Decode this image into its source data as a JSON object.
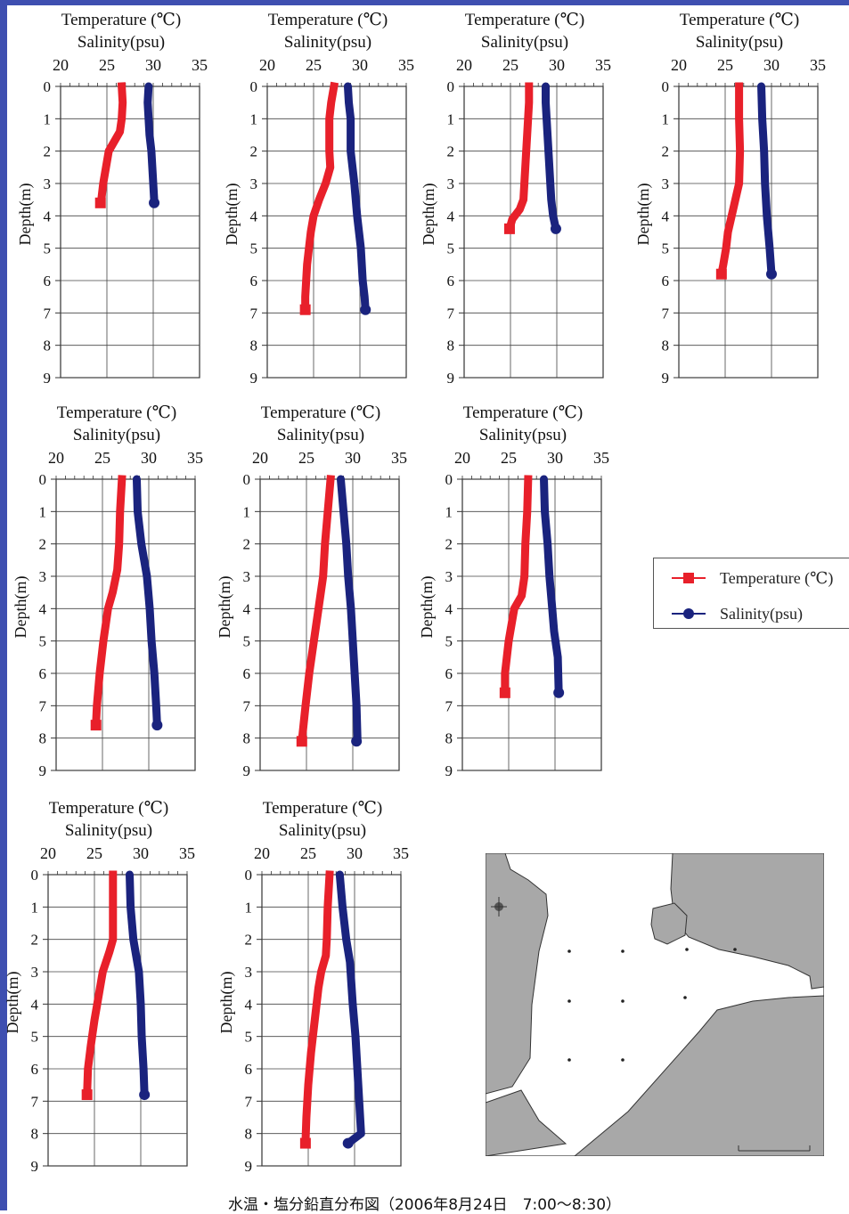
{
  "slide": {
    "background": "#ffffff",
    "frame_color": "#3e4fb0",
    "caption": "水温・塩分鉛直分布図（2006年8月24日　7:00～8:30）"
  },
  "legend": {
    "items": [
      {
        "label": "Temperature (℃)",
        "color": "#e8202a",
        "marker": "square"
      },
      {
        "label": "Salinity(psu)",
        "color": "#1a237e",
        "marker": "circle"
      }
    ]
  },
  "chart_data": [
    {
      "type": "line",
      "title_lines": [
        "Temperature (℃)",
        "Salinity(psu)"
      ],
      "ylabel": "Depth(m)",
      "xticks": [
        "20",
        "25",
        "30",
        "35"
      ],
      "xlim": [
        20,
        35
      ],
      "yticks": [
        "0",
        "1",
        "2",
        "3",
        "4",
        "5",
        "6",
        "7",
        "8",
        "9"
      ],
      "ylim": [
        0,
        9
      ],
      "y_inverted": true,
      "grid": true,
      "series": [
        {
          "name": "Temperature (℃)",
          "color": "#e8202a",
          "points": [
            [
              26.6,
              0
            ],
            [
              26.7,
              0.5
            ],
            [
              26.6,
              1
            ],
            [
              26.4,
              1.4
            ],
            [
              25.6,
              1.8
            ],
            [
              25.2,
              2
            ],
            [
              24.9,
              2.5
            ],
            [
              24.6,
              3
            ],
            [
              24.4,
              3.5
            ],
            [
              24.3,
              3.6
            ]
          ]
        },
        {
          "name": "Salinity(psu)",
          "color": "#1a237e",
          "points": [
            [
              29.5,
              0
            ],
            [
              29.4,
              0.5
            ],
            [
              29.5,
              1
            ],
            [
              29.6,
              1.5
            ],
            [
              29.8,
              2
            ],
            [
              29.9,
              2.5
            ],
            [
              30.0,
              3
            ],
            [
              30.1,
              3.5
            ],
            [
              30.1,
              3.6
            ]
          ]
        }
      ]
    },
    {
      "type": "line",
      "title_lines": [
        "Temperature (℃)",
        "Salinity(psu)"
      ],
      "ylabel": "Depth(m)",
      "xticks": [
        "20",
        "25",
        "30",
        "35"
      ],
      "xlim": [
        20,
        35
      ],
      "yticks": [
        "0",
        "1",
        "2",
        "3",
        "4",
        "5",
        "6",
        "7",
        "8",
        "9"
      ],
      "ylim": [
        0,
        9
      ],
      "y_inverted": true,
      "grid": true,
      "series": [
        {
          "name": "Temperature (℃)",
          "color": "#e8202a",
          "points": [
            [
              27.2,
              0
            ],
            [
              26.9,
              0.5
            ],
            [
              26.7,
              1
            ],
            [
              26.7,
              2
            ],
            [
              26.8,
              2.5
            ],
            [
              26.3,
              3
            ],
            [
              25.6,
              3.5
            ],
            [
              25.0,
              4
            ],
            [
              24.7,
              4.5
            ],
            [
              24.5,
              5
            ],
            [
              24.3,
              5.5
            ],
            [
              24.2,
              6
            ],
            [
              24.1,
              6.5
            ],
            [
              24.1,
              6.9
            ]
          ]
        },
        {
          "name": "Salinity(psu)",
          "color": "#1a237e",
          "points": [
            [
              28.7,
              0
            ],
            [
              28.8,
              0.5
            ],
            [
              29.0,
              1
            ],
            [
              29.0,
              2
            ],
            [
              29.4,
              3
            ],
            [
              29.7,
              4
            ],
            [
              30.1,
              5
            ],
            [
              30.3,
              6
            ],
            [
              30.5,
              6.5
            ],
            [
              30.6,
              6.9
            ]
          ]
        }
      ]
    },
    {
      "type": "line",
      "title_lines": [
        "Temperature (℃)",
        "Salinity(psu)"
      ],
      "ylabel": "Depth(m)",
      "xticks": [
        "20",
        "25",
        "30",
        "35"
      ],
      "xlim": [
        20,
        35
      ],
      "yticks": [
        "0",
        "1",
        "2",
        "3",
        "4",
        "5",
        "6",
        "7",
        "8",
        "9"
      ],
      "ylim": [
        0,
        9
      ],
      "y_inverted": true,
      "grid": true,
      "series": [
        {
          "name": "Temperature (℃)",
          "color": "#e8202a",
          "points": [
            [
              27.0,
              0
            ],
            [
              27.0,
              0.5
            ],
            [
              26.9,
              1
            ],
            [
              26.8,
              1.5
            ],
            [
              26.7,
              2
            ],
            [
              26.6,
              2.5
            ],
            [
              26.5,
              3
            ],
            [
              26.4,
              3.5
            ],
            [
              26.0,
              3.8
            ],
            [
              25.2,
              4.1
            ],
            [
              24.9,
              4.4
            ]
          ]
        },
        {
          "name": "Salinity(psu)",
          "color": "#1a237e",
          "points": [
            [
              28.8,
              0
            ],
            [
              28.8,
              0.5
            ],
            [
              28.9,
              1
            ],
            [
              29.0,
              1.5
            ],
            [
              29.1,
              2
            ],
            [
              29.2,
              2.5
            ],
            [
              29.3,
              3
            ],
            [
              29.4,
              3.5
            ],
            [
              29.6,
              4
            ],
            [
              29.9,
              4.4
            ]
          ]
        }
      ]
    },
    {
      "type": "line",
      "title_lines": [
        "Temperature (℃)",
        "Salinity(psu)"
      ],
      "ylabel": "Depth(m)",
      "xticks": [
        "20",
        "25",
        "30",
        "35"
      ],
      "xlim": [
        20,
        35
      ],
      "yticks": [
        "0",
        "1",
        "2",
        "3",
        "4",
        "5",
        "6",
        "7",
        "8",
        "9"
      ],
      "ylim": [
        0,
        9
      ],
      "y_inverted": true,
      "grid": true,
      "series": [
        {
          "name": "Temperature (℃)",
          "color": "#e8202a",
          "points": [
            [
              26.5,
              0
            ],
            [
              26.5,
              1
            ],
            [
              26.6,
              2
            ],
            [
              26.5,
              3
            ],
            [
              26.1,
              3.5
            ],
            [
              25.7,
              4
            ],
            [
              25.3,
              4.5
            ],
            [
              25.1,
              5
            ],
            [
              24.8,
              5.5
            ],
            [
              24.6,
              5.8
            ]
          ]
        },
        {
          "name": "Salinity(psu)",
          "color": "#1a237e",
          "points": [
            [
              28.9,
              0
            ],
            [
              29.0,
              1
            ],
            [
              29.2,
              2
            ],
            [
              29.3,
              3
            ],
            [
              29.5,
              4
            ],
            [
              29.8,
              5
            ],
            [
              30.0,
              5.8
            ]
          ]
        }
      ]
    },
    {
      "type": "line",
      "title_lines": [
        "Temperature (℃)",
        "Salinity(psu)"
      ],
      "ylabel": "Depth(m)",
      "xticks": [
        "20",
        "25",
        "30",
        "35"
      ],
      "xlim": [
        20,
        35
      ],
      "yticks": [
        "0",
        "1",
        "2",
        "3",
        "4",
        "5",
        "6",
        "7",
        "8",
        "9"
      ],
      "ylim": [
        0,
        9
      ],
      "y_inverted": true,
      "grid": true,
      "series": [
        {
          "name": "Temperature (℃)",
          "color": "#e8202a",
          "points": [
            [
              27.1,
              0
            ],
            [
              26.9,
              1
            ],
            [
              26.8,
              2
            ],
            [
              26.6,
              2.8
            ],
            [
              26.1,
              3.5
            ],
            [
              25.6,
              4
            ],
            [
              25.1,
              5
            ],
            [
              24.7,
              6
            ],
            [
              24.4,
              7
            ],
            [
              24.3,
              7.6
            ]
          ]
        },
        {
          "name": "Salinity(psu)",
          "color": "#1a237e",
          "points": [
            [
              28.7,
              0
            ],
            [
              28.8,
              1
            ],
            [
              29.2,
              2
            ],
            [
              29.8,
              3
            ],
            [
              30.1,
              4
            ],
            [
              30.3,
              5
            ],
            [
              30.6,
              6
            ],
            [
              30.8,
              7
            ],
            [
              30.9,
              7.6
            ]
          ]
        }
      ]
    },
    {
      "type": "line",
      "title_lines": [
        "Temperature (℃)",
        "Salinity(psu)"
      ],
      "ylabel": "Depth(m)",
      "xticks": [
        "20",
        "25",
        "30",
        "35"
      ],
      "xlim": [
        20,
        35
      ],
      "yticks": [
        "0",
        "1",
        "2",
        "3",
        "4",
        "5",
        "6",
        "7",
        "8",
        "9"
      ],
      "ylim": [
        0,
        9
      ],
      "y_inverted": true,
      "grid": true,
      "series": [
        {
          "name": "Temperature (℃)",
          "color": "#e8202a",
          "points": [
            [
              27.6,
              0
            ],
            [
              27.3,
              1
            ],
            [
              27.0,
              2
            ],
            [
              26.8,
              3
            ],
            [
              26.3,
              4
            ],
            [
              25.8,
              5
            ],
            [
              25.3,
              6
            ],
            [
              24.9,
              7
            ],
            [
              24.5,
              8.1
            ]
          ]
        },
        {
          "name": "Salinity(psu)",
          "color": "#1a237e",
          "points": [
            [
              28.7,
              0
            ],
            [
              29.0,
              1
            ],
            [
              29.3,
              2
            ],
            [
              29.5,
              3
            ],
            [
              29.8,
              4
            ],
            [
              30.0,
              5
            ],
            [
              30.2,
              6
            ],
            [
              30.4,
              7
            ],
            [
              30.5,
              8
            ],
            [
              30.4,
              8.1
            ]
          ]
        }
      ]
    },
    {
      "type": "line",
      "title_lines": [
        "Temperature (℃)",
        "Salinity(psu)"
      ],
      "ylabel": "Depth(m)",
      "xticks": [
        "20",
        "25",
        "30",
        "35"
      ],
      "xlim": [
        20,
        35
      ],
      "yticks": [
        "0",
        "1",
        "2",
        "3",
        "4",
        "5",
        "6",
        "7",
        "8",
        "9"
      ],
      "ylim": [
        0,
        9
      ],
      "y_inverted": true,
      "grid": true,
      "series": [
        {
          "name": "Temperature (℃)",
          "color": "#e8202a",
          "points": [
            [
              27.1,
              0
            ],
            [
              27.0,
              1
            ],
            [
              26.8,
              2
            ],
            [
              26.7,
              3
            ],
            [
              26.4,
              3.6
            ],
            [
              25.6,
              4
            ],
            [
              25.3,
              4.5
            ],
            [
              25.0,
              5
            ],
            [
              24.8,
              5.5
            ],
            [
              24.6,
              6
            ],
            [
              24.6,
              6.6
            ]
          ]
        },
        {
          "name": "Salinity(psu)",
          "color": "#1a237e",
          "points": [
            [
              28.8,
              0
            ],
            [
              28.9,
              1
            ],
            [
              29.2,
              2
            ],
            [
              29.4,
              3
            ],
            [
              29.7,
              4
            ],
            [
              29.9,
              4.7
            ],
            [
              30.3,
              5.5
            ],
            [
              30.4,
              6.6
            ]
          ]
        }
      ]
    },
    {
      "type": "line",
      "title_lines": [
        "Temperature (℃)",
        "Salinity(psu)"
      ],
      "ylabel": "Depth(m)",
      "xticks": [
        "20",
        "25",
        "30",
        "35"
      ],
      "xlim": [
        20,
        35
      ],
      "yticks": [
        "0",
        "1",
        "2",
        "3",
        "4",
        "5",
        "6",
        "7",
        "8",
        "9"
      ],
      "ylim": [
        0,
        9
      ],
      "y_inverted": true,
      "grid": true,
      "series": [
        {
          "name": "Temperature (℃)",
          "color": "#e8202a",
          "points": [
            [
              27.0,
              0
            ],
            [
              27.0,
              1
            ],
            [
              27.0,
              2
            ],
            [
              26.6,
              2.4
            ],
            [
              25.9,
              3
            ],
            [
              25.6,
              3.5
            ],
            [
              25.3,
              4
            ],
            [
              25.0,
              4.5
            ],
            [
              24.6,
              5.3
            ],
            [
              24.3,
              6
            ],
            [
              24.2,
              6.8
            ]
          ]
        },
        {
          "name": "Salinity(psu)",
          "color": "#1a237e",
          "points": [
            [
              28.8,
              0
            ],
            [
              28.9,
              1
            ],
            [
              29.2,
              2
            ],
            [
              29.5,
              2.5
            ],
            [
              29.8,
              3
            ],
            [
              30.0,
              4
            ],
            [
              30.1,
              5
            ],
            [
              30.3,
              6
            ],
            [
              30.4,
              6.8
            ]
          ]
        }
      ]
    },
    {
      "type": "line",
      "title_lines": [
        "Temperature (℃)",
        "Salinity(psu)"
      ],
      "ylabel": "Depth(m)",
      "xticks": [
        "20",
        "25",
        "30",
        "35"
      ],
      "xlim": [
        20,
        35
      ],
      "yticks": [
        "0",
        "1",
        "2",
        "3",
        "4",
        "5",
        "6",
        "7",
        "8",
        "9"
      ],
      "ylim": [
        0,
        9
      ],
      "y_inverted": true,
      "grid": true,
      "series": [
        {
          "name": "Temperature (℃)",
          "color": "#e8202a",
          "points": [
            [
              27.3,
              0
            ],
            [
              27.1,
              1
            ],
            [
              27.0,
              2
            ],
            [
              26.9,
              2.5
            ],
            [
              26.4,
              3
            ],
            [
              26.1,
              3.5
            ],
            [
              25.7,
              4.5
            ],
            [
              25.3,
              5.5
            ],
            [
              25.0,
              6.5
            ],
            [
              24.8,
              7.5
            ],
            [
              24.7,
              8.3
            ]
          ]
        },
        {
          "name": "Salinity(psu)",
          "color": "#1a237e",
          "points": [
            [
              28.4,
              0
            ],
            [
              28.7,
              1
            ],
            [
              29.1,
              2
            ],
            [
              29.5,
              2.7
            ],
            [
              29.8,
              4
            ],
            [
              30.1,
              5
            ],
            [
              30.3,
              6
            ],
            [
              30.5,
              7
            ],
            [
              30.7,
              8
            ],
            [
              29.3,
              8.3
            ]
          ]
        }
      ]
    }
  ]
}
